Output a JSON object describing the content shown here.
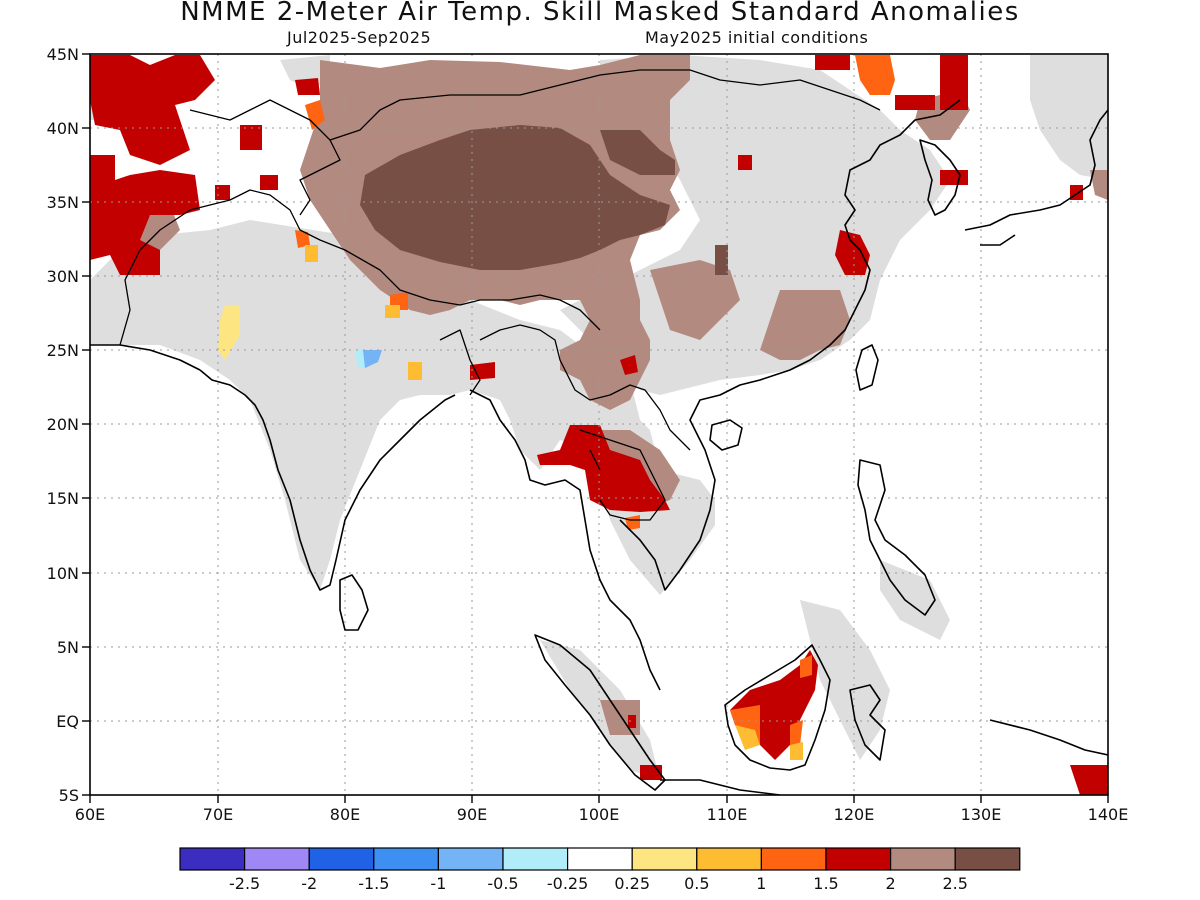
{
  "title": "NMME 2-Meter Air Temp. Skill Masked Standard Anomalies",
  "period": "Jul2025-Sep2025",
  "initial_conditions": "May2025 initial conditions",
  "axes": {
    "lon_labels": [
      "60E",
      "70E",
      "80E",
      "90E",
      "100E",
      "110E",
      "120E",
      "130E",
      "140E"
    ],
    "lat_labels": [
      "45N",
      "40N",
      "35N",
      "30N",
      "25N",
      "20N",
      "15N",
      "10N",
      "5N",
      "EQ",
      "5S"
    ]
  },
  "colorbar": {
    "labels": [
      "-2.5",
      "-2",
      "-1.5",
      "-1",
      "-0.5",
      "-0.25",
      "0.25",
      "0.5",
      "1",
      "1.5",
      "2",
      "2.5"
    ],
    "colors": [
      "#3b2dc0",
      "#9f88f5",
      "#1f62e6",
      "#3e8ff2",
      "#74b3f5",
      "#b1ecf9",
      "#ffffff",
      "#fde682",
      "#fdbc32",
      "#fe6411",
      "#c30000",
      "#b38a80",
      "#774f45"
    ]
  },
  "colors": {
    "masked_gray": "#dedede",
    "coast": "#000000",
    "grid": "#9a9a9a"
  }
}
